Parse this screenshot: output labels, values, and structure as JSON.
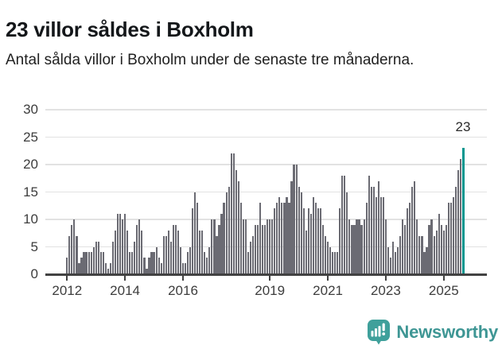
{
  "header": {
    "title": "23 villor såldes i Boxholm",
    "subtitle": "Antal sålda villor i Boxholm under de senaste tre månaderna."
  },
  "chart_data": {
    "type": "bar",
    "title": "23 villor såldes i Boxholm",
    "xlabel": "",
    "ylabel": "",
    "ylim": [
      0,
      30
    ],
    "yticks": [
      0,
      5,
      10,
      15,
      20,
      25,
      30
    ],
    "grid": "horizontal",
    "legend": "none",
    "x_unit": "month",
    "x_start": "2012-01",
    "x_end": "2025-09",
    "series": [
      {
        "name": "Antal sålda villor, rullande tre månader",
        "values": [
          3,
          7,
          9,
          10,
          7,
          2,
          3,
          4,
          4,
          4,
          4,
          5,
          6,
          6,
          4,
          4,
          2,
          1,
          2,
          6,
          8,
          11,
          11,
          10,
          11,
          8,
          4,
          4,
          6,
          9,
          10,
          8,
          3,
          1,
          3,
          4,
          4,
          5,
          3,
          2,
          7,
          7,
          8,
          6,
          9,
          9,
          8,
          5,
          2,
          2,
          4,
          5,
          12,
          15,
          13,
          8,
          8,
          4,
          3,
          5,
          10,
          10,
          7,
          9,
          11,
          13,
          15,
          16,
          22,
          22,
          19,
          17,
          13,
          10,
          10,
          4,
          6,
          7,
          9,
          9,
          13,
          9,
          9,
          10,
          10,
          10,
          12,
          13,
          14,
          13,
          13,
          14,
          13,
          17,
          20,
          20,
          16,
          15,
          12,
          8,
          12,
          11,
          14,
          13,
          12,
          12,
          9,
          7,
          6,
          5,
          4,
          4,
          4,
          12,
          18,
          18,
          15,
          10,
          9,
          9,
          10,
          10,
          9,
          10,
          13,
          18,
          16,
          16,
          14,
          17,
          14,
          14,
          10,
          5,
          3,
          6,
          4,
          5,
          7,
          10,
          9,
          12,
          13,
          16,
          17,
          10,
          7,
          7,
          4,
          5,
          9,
          10,
          7,
          8,
          11,
          9,
          8,
          9,
          13,
          13,
          14,
          16,
          19,
          21,
          23
        ]
      }
    ],
    "xticks": [
      {
        "label": "2012",
        "month_index": 0
      },
      {
        "label": "2014",
        "month_index": 24
      },
      {
        "label": "2016",
        "month_index": 48
      },
      {
        "label": "2019",
        "month_index": 84
      },
      {
        "label": "2021",
        "month_index": 108
      },
      {
        "label": "2023",
        "month_index": 132
      },
      {
        "label": "2025",
        "month_index": 156
      }
    ],
    "highlight": {
      "index": 164,
      "value": 23,
      "label": "23"
    },
    "colors": {
      "bar": "#6b6b73",
      "highlight": "#00968f",
      "axis": "#424242",
      "grid": "#e2e2e2",
      "tick_text": "#3d3d3d"
    }
  },
  "footer": {
    "brand": "Newsworthy"
  }
}
